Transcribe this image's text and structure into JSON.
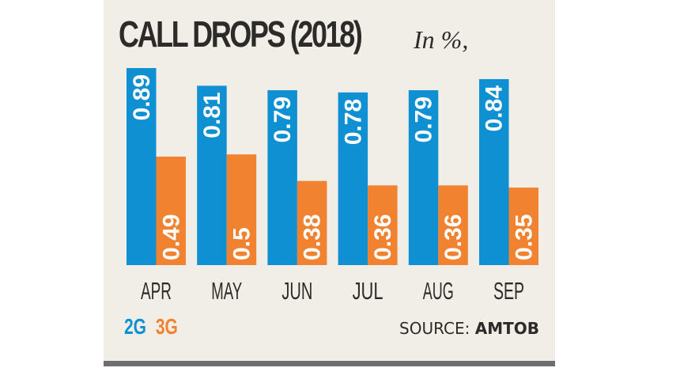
{
  "chart_data": {
    "type": "bar",
    "title": "CALL DROPS (2018)",
    "subtitle": "In %,",
    "xlabel": "",
    "ylabel": "",
    "ylim": [
      0,
      0.89
    ],
    "grid": false,
    "categories": [
      "APR",
      "MAY",
      "JUN",
      "JUL",
      "AUG",
      "SEP"
    ],
    "series": [
      {
        "name": "2G",
        "color": "#0e90d3",
        "values": [
          0.89,
          0.81,
          0.79,
          0.78,
          0.79,
          0.84
        ],
        "labels": [
          "0.89",
          "0.81",
          "0.79",
          "0.78",
          "0.79",
          "0.84"
        ]
      },
      {
        "name": "3G",
        "color": "#f08230",
        "values": [
          0.49,
          0.5,
          0.38,
          0.36,
          0.36,
          0.35
        ],
        "labels": [
          "0.49",
          "0.5",
          "0.38",
          "0.36",
          "0.36",
          "0.35"
        ]
      }
    ],
    "legend": "bottom-left",
    "source_prefix": "SOURCE:",
    "source_name": "AMTOB"
  }
}
